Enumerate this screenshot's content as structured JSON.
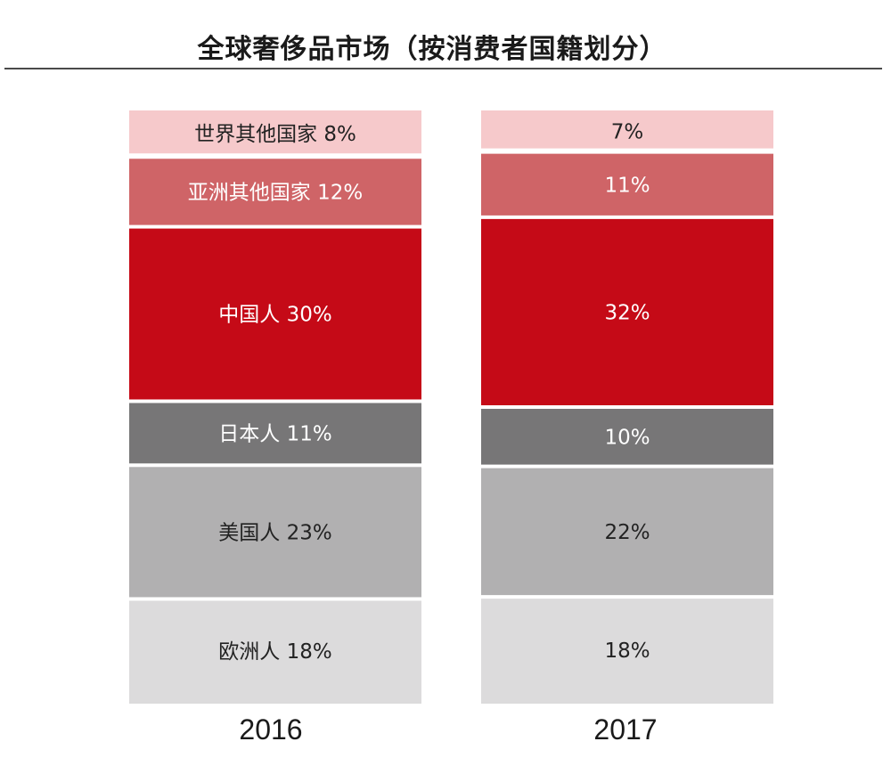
{
  "chart_data": {
    "type": "bar",
    "stacked": true,
    "normalized": true,
    "title": "全球奢侈品市场（按消费者国籍划分）",
    "categories": [
      "2016",
      "2017"
    ],
    "series": [
      {
        "name": "欧洲人",
        "values": [
          18,
          18
        ],
        "labels": [
          "欧洲人 18%",
          "18%"
        ],
        "color": "#dcdbdc",
        "text_color": "#222222"
      },
      {
        "name": "美国人",
        "values": [
          23,
          22
        ],
        "labels": [
          "美国人 23%",
          "22%"
        ],
        "color": "#b1b0b1",
        "text_color": "#222222"
      },
      {
        "name": "日本人",
        "values": [
          11,
          10
        ],
        "labels": [
          "日本人 11%",
          "10%"
        ],
        "color": "#777677",
        "text_color": "#ffffff"
      },
      {
        "name": "中国人",
        "values": [
          30,
          32
        ],
        "labels": [
          "中国人 30%",
          "32%"
        ],
        "color": "#c50a17",
        "text_color": "#ffffff"
      },
      {
        "name": "亚洲其他国家",
        "values": [
          12,
          11
        ],
        "labels": [
          "亚洲其他国家 12%",
          "11%"
        ],
        "color": "#cf6467",
        "text_color": "#ffffff"
      },
      {
        "name": "世界其他国家",
        "values": [
          8,
          7
        ],
        "labels": [
          "世界其他国家 8%",
          "7%"
        ],
        "color": "#f6c9cb",
        "text_color": "#222222"
      }
    ]
  }
}
